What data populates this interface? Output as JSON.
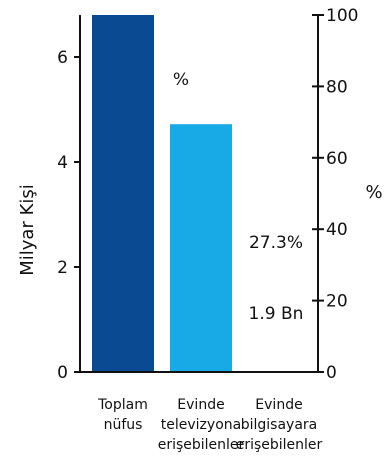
{
  "chart_data": {
    "type": "bar",
    "categories": [
      [
        "Toplam",
        "nüfus"
      ],
      [
        "Evinde",
        "televizyona",
        "erişebilenler"
      ],
      [
        "Evinde",
        "bilgisayara",
        "erişebilenler"
      ]
    ],
    "values": [
      6.8,
      4.72,
      1.9
    ],
    "bar_colors": [
      "#0a4a93",
      "#18aae6",
      "#ffffff"
    ],
    "ylabel": "Milyar Kişi",
    "ylim": [
      0,
      6.8
    ],
    "yticks": [
      "0",
      "2",
      "4",
      "6"
    ],
    "y2label": "%",
    "y2lim": [
      0,
      100
    ],
    "y2ticks": [
      "0",
      "20",
      "40",
      "60",
      "80",
      "100"
    ],
    "annotations": {
      "percent_unit": "%",
      "pct_value": "27.3%",
      "bn_value": "1.9 Bn"
    },
    "grid": false,
    "legend": "none"
  }
}
